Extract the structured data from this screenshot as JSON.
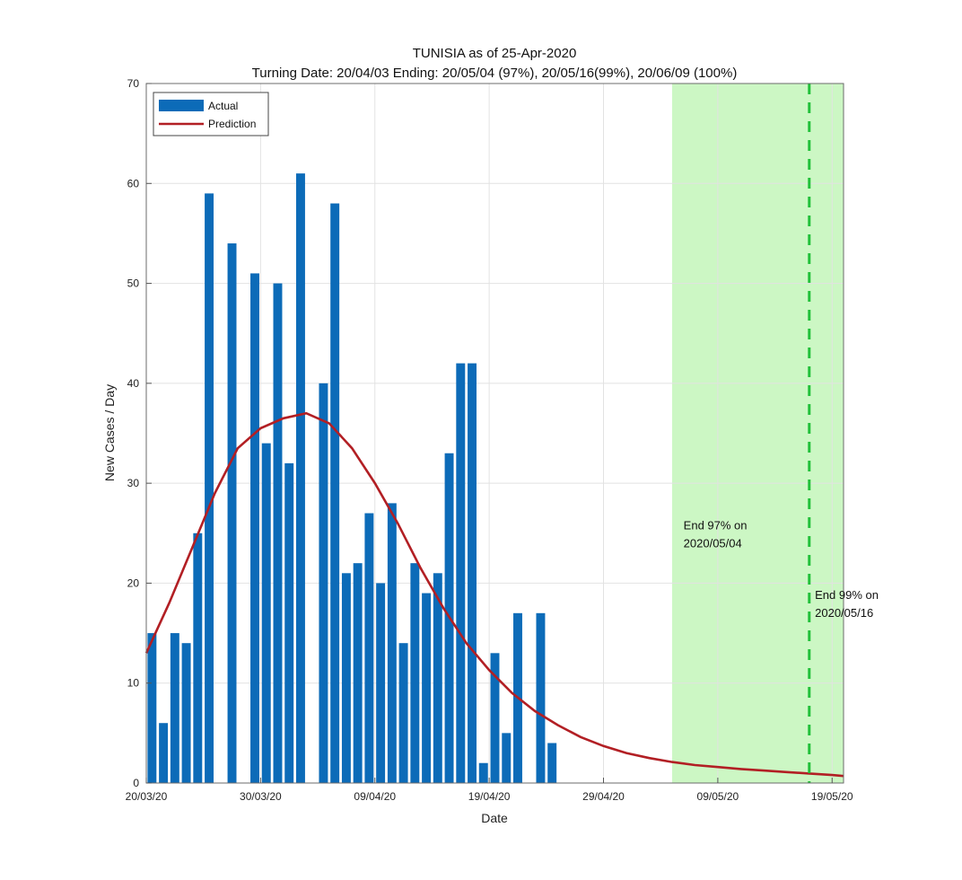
{
  "chart_data": {
    "type": "bar",
    "title": "TUNISIA as of 25-Apr-2020",
    "subtitle": "Turning Date: 20/04/03  Ending: 20/05/04 (97%), 20/05/16(99%), 20/06/09 (100%)",
    "xlabel": "Date",
    "ylabel": "New Cases / Day",
    "xlim": [
      0,
      61
    ],
    "ylim": [
      0,
      70
    ],
    "yticks": [
      0,
      10,
      20,
      30,
      40,
      50,
      60,
      70
    ],
    "xtick_positions": [
      0,
      10,
      20,
      30,
      40,
      50,
      60
    ],
    "xtick_labels": [
      "20/03/20",
      "30/03/20",
      "09/04/20",
      "19/04/20",
      "29/04/20",
      "09/05/20",
      "19/05/20"
    ],
    "grid": true,
    "legend_position": "top-left",
    "series": [
      {
        "name": "Actual",
        "kind": "bar",
        "color": "#0c6bb8",
        "x": [
          0,
          1,
          2,
          3,
          4,
          5,
          6,
          7,
          8,
          9,
          10,
          11,
          12,
          13,
          14,
          15,
          16,
          17,
          18,
          19,
          20,
          21,
          22,
          23,
          24,
          25,
          26,
          27,
          28,
          29,
          30,
          31,
          32,
          33,
          34,
          35,
          36
        ],
        "values": [
          15,
          6,
          15,
          14,
          25,
          59,
          0,
          54,
          0,
          51,
          34,
          50,
          32,
          61,
          0,
          40,
          58,
          21,
          22,
          27,
          20,
          28,
          14,
          22,
          19,
          21,
          33,
          42,
          42,
          2,
          13,
          5,
          17,
          0,
          17,
          4,
          0
        ]
      },
      {
        "name": "Prediction",
        "kind": "line",
        "color": "#b21f24",
        "x": [
          0,
          2,
          4,
          6,
          8,
          10,
          12,
          14,
          16,
          18,
          20,
          22,
          24,
          26,
          28,
          30,
          32,
          34,
          36,
          38,
          40,
          42,
          44,
          46,
          48,
          50,
          52,
          54,
          56,
          58,
          60,
          61
        ],
        "values": [
          13,
          18,
          23.5,
          29,
          33.5,
          35.5,
          36.5,
          37,
          36,
          33.5,
          30,
          26,
          21.5,
          17.5,
          14,
          11.3,
          9,
          7.2,
          5.8,
          4.6,
          3.7,
          3.0,
          2.5,
          2.1,
          1.8,
          1.6,
          1.4,
          1.25,
          1.1,
          0.95,
          0.8,
          0.7
        ]
      }
    ],
    "shaded_region": {
      "x_start": 46,
      "x_end": 61,
      "color": "#ccf7c4"
    },
    "vertical_line": {
      "x": 58,
      "color": "#22c03a",
      "style": "dashed"
    },
    "annotations": [
      {
        "x": 47,
        "y": 25.4,
        "lines": [
          "End 97% on",
          "2020/05/04"
        ]
      },
      {
        "x": 58.5,
        "y": 18.4,
        "lines": [
          "End 99% on",
          "2020/05/16"
        ]
      }
    ]
  }
}
